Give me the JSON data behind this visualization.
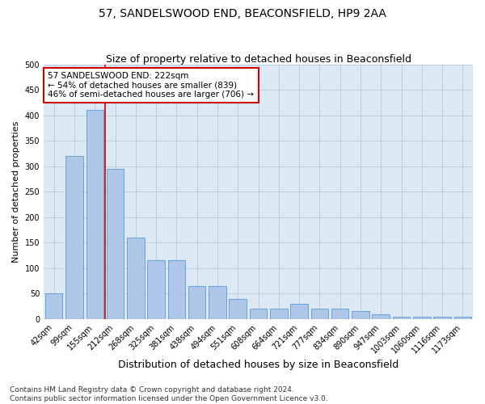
{
  "title": "57, SANDELSWOOD END, BEACONSFIELD, HP9 2AA",
  "subtitle": "Size of property relative to detached houses in Beaconsfield",
  "xlabel": "Distribution of detached houses by size in Beaconsfield",
  "ylabel": "Number of detached properties",
  "categories": [
    "42sqm",
    "99sqm",
    "155sqm",
    "212sqm",
    "268sqm",
    "325sqm",
    "381sqm",
    "438sqm",
    "494sqm",
    "551sqm",
    "608sqm",
    "664sqm",
    "721sqm",
    "777sqm",
    "834sqm",
    "890sqm",
    "947sqm",
    "1003sqm",
    "1060sqm",
    "1116sqm",
    "1173sqm"
  ],
  "values": [
    50,
    320,
    410,
    295,
    160,
    115,
    115,
    65,
    65,
    40,
    20,
    20,
    30,
    20,
    20,
    15,
    10,
    5,
    5,
    5,
    5
  ],
  "bar_color": "#aec6e8",
  "bar_edge_color": "#5b9bd5",
  "annotation_line1": "57 SANDELSWOOD END: 222sqm",
  "annotation_line2": "← 54% of detached houses are smaller (839)",
  "annotation_line3": "46% of semi-detached houses are larger (706) →",
  "annotation_box_color": "#ffffff",
  "annotation_box_edge": "#cc0000",
  "red_line_color": "#cc0000",
  "grid_color": "#b8cfe0",
  "background_color": "#dce9f5",
  "footer_line1": "Contains HM Land Registry data © Crown copyright and database right 2024.",
  "footer_line2": "Contains public sector information licensed under the Open Government Licence v3.0.",
  "ylim": [
    0,
    500
  ],
  "title_fontsize": 10,
  "subtitle_fontsize": 9,
  "xlabel_fontsize": 9,
  "ylabel_fontsize": 8,
  "tick_fontsize": 7,
  "annotation_fontsize": 7.5,
  "footer_fontsize": 6.5
}
